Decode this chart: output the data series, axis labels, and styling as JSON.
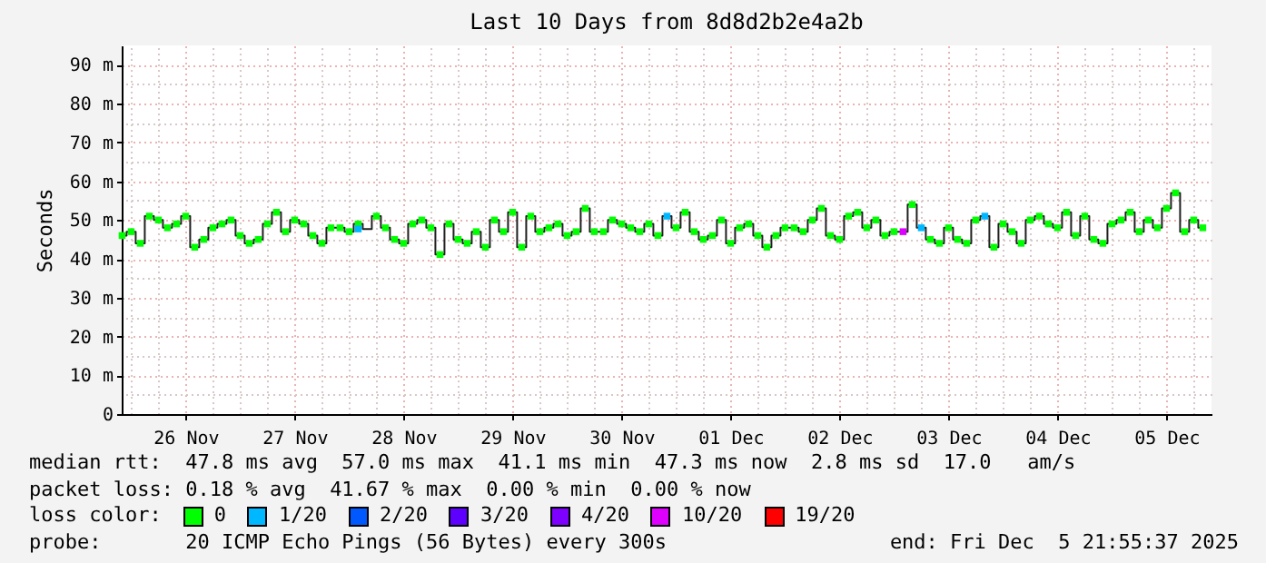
{
  "chart_data": {
    "type": "scatter",
    "title": "Last 10 Days from 8d8d2b2e4a2b",
    "ylabel": "Seconds",
    "legend_title": "loss color:",
    "legend": "bottom",
    "grid": true,
    "marker": "square",
    "annotations": [
      "median rtt:  47.8 ms avg  57.0 ms max  41.1 ms min  47.3 ms now  2.8 ms sd  17.0   am/s",
      "packet loss: 0.18 % avg  41.67 % max  0.00 % min  0.00 % now",
      "probe:       20 ICMP Echo Pings (56 Bytes) every 300s",
      "end: Fri Dec  5 21:55:37 2025"
    ],
    "xlim": [
      "2025-11-25T21:55",
      "2025-12-05T21:55"
    ],
    "xticks": [
      {
        "value": "2025-11-26T00:00",
        "label": null
      },
      {
        "value": "2025-11-26T06:00",
        "label": null
      },
      {
        "value": "2025-11-26T12:00",
        "label": "26 Nov"
      },
      {
        "value": "2025-11-26T18:00",
        "label": null
      },
      {
        "value": "2025-11-27T00:00",
        "label": null
      },
      {
        "value": "2025-11-27T06:00",
        "label": null
      },
      {
        "value": "2025-11-27T12:00",
        "label": "27 Nov"
      },
      {
        "value": "2025-11-27T18:00",
        "label": null
      },
      {
        "value": "2025-11-28T00:00",
        "label": null
      },
      {
        "value": "2025-11-28T06:00",
        "label": null
      },
      {
        "value": "2025-11-28T12:00",
        "label": "28 Nov"
      },
      {
        "value": "2025-11-28T18:00",
        "label": null
      },
      {
        "value": "2025-11-29T00:00",
        "label": null
      },
      {
        "value": "2025-11-29T06:00",
        "label": null
      },
      {
        "value": "2025-11-29T12:00",
        "label": "29 Nov"
      },
      {
        "value": "2025-11-29T18:00",
        "label": null
      },
      {
        "value": "2025-11-30T00:00",
        "label": null
      },
      {
        "value": "2025-11-30T06:00",
        "label": null
      },
      {
        "value": "2025-11-30T12:00",
        "label": "30 Nov"
      },
      {
        "value": "2025-11-30T18:00",
        "label": null
      },
      {
        "value": "2025-12-01T00:00",
        "label": null
      },
      {
        "value": "2025-12-01T06:00",
        "label": null
      },
      {
        "value": "2025-12-01T12:00",
        "label": "01 Dec"
      },
      {
        "value": "2025-12-01T18:00",
        "label": null
      },
      {
        "value": "2025-12-02T00:00",
        "label": null
      },
      {
        "value": "2025-12-02T06:00",
        "label": null
      },
      {
        "value": "2025-12-02T12:00",
        "label": "02 Dec"
      },
      {
        "value": "2025-12-02T18:00",
        "label": null
      },
      {
        "value": "2025-12-03T00:00",
        "label": null
      },
      {
        "value": "2025-12-03T06:00",
        "label": null
      },
      {
        "value": "2025-12-03T12:00",
        "label": "03 Dec"
      },
      {
        "value": "2025-12-03T18:00",
        "label": null
      },
      {
        "value": "2025-12-04T00:00",
        "label": null
      },
      {
        "value": "2025-12-04T06:00",
        "label": null
      },
      {
        "value": "2025-12-04T12:00",
        "label": "04 Dec"
      },
      {
        "value": "2025-12-04T18:00",
        "label": null
      },
      {
        "value": "2025-12-05T00:00",
        "label": null
      },
      {
        "value": "2025-12-05T06:00",
        "label": null
      },
      {
        "value": "2025-12-05T12:00",
        "label": "05 Dec"
      },
      {
        "value": "2025-12-05T18:00",
        "label": null
      }
    ],
    "ylim": [
      0,
      95
    ],
    "yticks": [
      0,
      {
        "value": 5,
        "label": null
      },
      {
        "value": 10,
        "label": "10 m"
      },
      {
        "value": 15,
        "label": null
      },
      {
        "value": 20,
        "label": "20 m"
      },
      {
        "value": 25,
        "label": null
      },
      {
        "value": 30,
        "label": "30 m"
      },
      {
        "value": 35,
        "label": null
      },
      {
        "value": 40,
        "label": "40 m"
      },
      {
        "value": 45,
        "label": null
      },
      {
        "value": 50,
        "label": "50 m"
      },
      {
        "value": 55,
        "label": null
      },
      {
        "value": 60,
        "label": "60 m"
      },
      {
        "value": 65,
        "label": null
      },
      {
        "value": 70,
        "label": "70 m"
      },
      {
        "value": 75,
        "label": null
      },
      {
        "value": 80,
        "label": "80 m"
      },
      {
        "value": 85,
        "label": null
      },
      {
        "value": 90,
        "label": "90 m"
      }
    ],
    "x": [
      "2025-11-25T22:00",
      "2025-11-26T00:00",
      "2025-11-26T02:00",
      "2025-11-26T04:00",
      "2025-11-26T06:00",
      "2025-11-26T08:00",
      "2025-11-26T10:00",
      "2025-11-26T12:00",
      "2025-11-26T14:00",
      "2025-11-26T16:00",
      "2025-11-26T18:00",
      "2025-11-26T20:00",
      "2025-11-26T22:00",
      "2025-11-27T00:00",
      "2025-11-27T02:00",
      "2025-11-27T04:00",
      "2025-11-27T06:00",
      "2025-11-27T08:00",
      "2025-11-27T10:00",
      "2025-11-27T12:00",
      "2025-11-27T14:00",
      "2025-11-27T16:00",
      "2025-11-27T18:00",
      "2025-11-27T20:00",
      "2025-11-27T22:00",
      "2025-11-28T00:00",
      "2025-11-28T02:00",
      "2025-11-28T04:00",
      "2025-11-28T06:00",
      "2025-11-28T08:00",
      "2025-11-28T10:00",
      "2025-11-28T12:00",
      "2025-11-28T14:00",
      "2025-11-28T16:00",
      "2025-11-28T18:00",
      "2025-11-28T20:00",
      "2025-11-28T22:00",
      "2025-11-29T00:00",
      "2025-11-29T02:00",
      "2025-11-29T04:00",
      "2025-11-29T06:00",
      "2025-11-29T08:00",
      "2025-11-29T10:00",
      "2025-11-29T12:00",
      "2025-11-29T14:00",
      "2025-11-29T16:00",
      "2025-11-29T18:00",
      "2025-11-29T20:00",
      "2025-11-29T22:00",
      "2025-11-30T00:00",
      "2025-11-30T02:00",
      "2025-11-30T04:00",
      "2025-11-30T06:00",
      "2025-11-30T08:00",
      "2025-11-30T10:00",
      "2025-11-30T12:00",
      "2025-11-30T14:00",
      "2025-11-30T16:00",
      "2025-11-30T18:00",
      "2025-11-30T20:00",
      "2025-11-30T22:00",
      "2025-12-01T00:00",
      "2025-12-01T02:00",
      "2025-12-01T04:00",
      "2025-12-01T06:00",
      "2025-12-01T08:00",
      "2025-12-01T10:00",
      "2025-12-01T12:00",
      "2025-12-01T14:00",
      "2025-12-01T16:00",
      "2025-12-01T18:00",
      "2025-12-01T20:00",
      "2025-12-01T22:00",
      "2025-12-02T00:00",
      "2025-12-02T02:00",
      "2025-12-02T04:00",
      "2025-12-02T06:00",
      "2025-12-02T08:00",
      "2025-12-02T10:00",
      "2025-12-02T12:00",
      "2025-12-02T14:00",
      "2025-12-02T16:00",
      "2025-12-02T18:00",
      "2025-12-02T20:00",
      "2025-12-02T22:00",
      "2025-12-03T00:00",
      "2025-12-03T02:00",
      "2025-12-03T04:00",
      "2025-12-03T06:00",
      "2025-12-03T08:00",
      "2025-12-03T10:00",
      "2025-12-03T12:00",
      "2025-12-03T14:00",
      "2025-12-03T16:00",
      "2025-12-03T18:00",
      "2025-12-03T20:00",
      "2025-12-03T22:00",
      "2025-12-04T00:00",
      "2025-12-04T02:00",
      "2025-12-04T04:00",
      "2025-12-04T06:00",
      "2025-12-04T08:00",
      "2025-12-04T10:00",
      "2025-12-04T12:00",
      "2025-12-04T14:00",
      "2025-12-04T16:00",
      "2025-12-04T18:00",
      "2025-12-04T20:00",
      "2025-12-04T22:00",
      "2025-12-05T00:00",
      "2025-12-05T02:00",
      "2025-12-05T04:00",
      "2025-12-05T06:00",
      "2025-12-05T08:00",
      "2025-12-05T10:00",
      "2025-12-05T12:00",
      "2025-12-05T14:00",
      "2025-12-05T16:00",
      "2025-12-05T18:00",
      "2025-12-05T20:00"
    ],
    "series": [
      {
        "type": "step",
        "marker": "none",
        "color": "#202020",
        "values": [
          46,
          47,
          44,
          51,
          50,
          48,
          49,
          51,
          43,
          45,
          48,
          49,
          50,
          46,
          44,
          45,
          49,
          52,
          47,
          50,
          49,
          46,
          44,
          48,
          48,
          47,
          49,
          47.7,
          51,
          48,
          45,
          44,
          49,
          50,
          48,
          41.1,
          49,
          45,
          44,
          47,
          43,
          50,
          47,
          52,
          43,
          51,
          47,
          48,
          49,
          46,
          47,
          53,
          47,
          47,
          50,
          49,
          48,
          47,
          49,
          46,
          51,
          48,
          52,
          47,
          45,
          46,
          50,
          44,
          48,
          49,
          46,
          43,
          46,
          48,
          48,
          47,
          50,
          53,
          46,
          45,
          51,
          52,
          48,
          50,
          46,
          47,
          47,
          54,
          48,
          45,
          44,
          48,
          45,
          44,
          50,
          51,
          43,
          49,
          47,
          44,
          50,
          51,
          49,
          48,
          52,
          46,
          51,
          45,
          44,
          49,
          50,
          52,
          47,
          50,
          48,
          53,
          57,
          47,
          50,
          48
        ]
      },
      {
        "name": "0",
        "color": "#00ff00",
        "values": [
          46,
          47,
          44,
          51,
          50,
          48,
          49,
          51,
          43,
          45,
          48,
          49,
          50,
          46,
          44,
          45,
          49,
          52,
          47,
          50,
          49,
          46,
          44,
          48,
          48,
          47,
          49,
          null,
          51,
          48,
          45,
          44,
          49,
          50,
          48,
          41.1,
          49,
          45,
          44,
          47,
          43,
          50,
          47,
          52,
          43,
          51,
          47,
          48,
          49,
          46,
          47,
          53,
          47,
          47,
          50,
          49,
          48,
          47,
          49,
          46,
          null,
          48,
          52,
          47,
          45,
          46,
          50,
          44,
          48,
          49,
          46,
          43,
          46,
          48,
          48,
          47,
          50,
          53,
          46,
          45,
          51,
          52,
          48,
          50,
          46,
          47,
          null,
          54,
          null,
          45,
          44,
          48,
          45,
          44,
          50,
          null,
          43,
          49,
          47,
          44,
          50,
          51,
          49,
          48,
          52,
          46,
          51,
          45,
          44,
          49,
          50,
          52,
          47,
          50,
          48,
          53,
          57,
          47,
          50,
          48
        ]
      },
      {
        "name": "1/20",
        "color": "#00b8ff",
        "x": [
          "2025-11-28T02:00",
          "2025-11-30T22:00",
          "2025-12-03T06:00",
          "2025-12-03T20:00"
        ],
        "values": [
          47.7,
          51,
          48,
          51
        ]
      },
      {
        "name": "2/20",
        "color": "#0059ff",
        "values": [
          null,
          null,
          null,
          null,
          null,
          null,
          null,
          null,
          null,
          null,
          null,
          null,
          null,
          null,
          null,
          null,
          null,
          null,
          null,
          null,
          null,
          null,
          null,
          null,
          null,
          null,
          null,
          null,
          null,
          null,
          null,
          null,
          null,
          null,
          null,
          null,
          null,
          null,
          null,
          null,
          null,
          null,
          null,
          null,
          null,
          null,
          null,
          null,
          null,
          null,
          null,
          null,
          null,
          null,
          null,
          null,
          null,
          null,
          null,
          null,
          null,
          null,
          null,
          null,
          null,
          null,
          null,
          null,
          null,
          null,
          null,
          null,
          null,
          null,
          null,
          null,
          null,
          null,
          null,
          null,
          null,
          null,
          null,
          null,
          null,
          null,
          null,
          null,
          null,
          null,
          null,
          null,
          null,
          null,
          null,
          null,
          null,
          null,
          null,
          null,
          null,
          null,
          null,
          null,
          null,
          null,
          null,
          null,
          null,
          null,
          null,
          null,
          null,
          null,
          null,
          null,
          null,
          null,
          null,
          null
        ]
      },
      {
        "name": "3/20",
        "color": "#5e00ff",
        "values": [
          null,
          null,
          null,
          null,
          null,
          null,
          null,
          null,
          null,
          null,
          null,
          null,
          null,
          null,
          null,
          null,
          null,
          null,
          null,
          null,
          null,
          null,
          null,
          null,
          null,
          null,
          null,
          null,
          null,
          null,
          null,
          null,
          null,
          null,
          null,
          null,
          null,
          null,
          null,
          null,
          null,
          null,
          null,
          null,
          null,
          null,
          null,
          null,
          null,
          null,
          null,
          null,
          null,
          null,
          null,
          null,
          null,
          null,
          null,
          null,
          null,
          null,
          null,
          null,
          null,
          null,
          null,
          null,
          null,
          null,
          null,
          null,
          null,
          null,
          null,
          null,
          null,
          null,
          null,
          null,
          null,
          null,
          null,
          null,
          null,
          null,
          null,
          null,
          null,
          null,
          null,
          null,
          null,
          null,
          null,
          null,
          null,
          null,
          null,
          null,
          null,
          null,
          null,
          null,
          null,
          null,
          null,
          null,
          null,
          null,
          null,
          null,
          null,
          null,
          null,
          null,
          null,
          null,
          null,
          null
        ]
      },
      {
        "name": "4/20",
        "color": "#7e00ff",
        "values": [
          null,
          null,
          null,
          null,
          null,
          null,
          null,
          null,
          null,
          null,
          null,
          null,
          null,
          null,
          null,
          null,
          null,
          null,
          null,
          null,
          null,
          null,
          null,
          null,
          null,
          null,
          null,
          null,
          null,
          null,
          null,
          null,
          null,
          null,
          null,
          null,
          null,
          null,
          null,
          null,
          null,
          null,
          null,
          null,
          null,
          null,
          null,
          null,
          null,
          null,
          null,
          null,
          null,
          null,
          null,
          null,
          null,
          null,
          null,
          null,
          null,
          null,
          null,
          null,
          null,
          null,
          null,
          null,
          null,
          null,
          null,
          null,
          null,
          null,
          null,
          null,
          null,
          null,
          null,
          null,
          null,
          null,
          null,
          null,
          null,
          null,
          null,
          null,
          null,
          null,
          null,
          null,
          null,
          null,
          null,
          null,
          null,
          null,
          null,
          null,
          null,
          null,
          null,
          null,
          null,
          null,
          null,
          null,
          null,
          null,
          null,
          null,
          null,
          null,
          null,
          null,
          null,
          null,
          null,
          null
        ]
      },
      {
        "name": "10/20",
        "color": "#dd00ff",
        "x": [
          "2025-12-03T02:00"
        ],
        "values": [
          47
        ]
      },
      {
        "name": "19/20",
        "color": "#ff0000",
        "values": [
          null,
          null,
          null,
          null,
          null,
          null,
          null,
          null,
          null,
          null,
          null,
          null,
          null,
          null,
          null,
          null,
          null,
          null,
          null,
          null,
          null,
          null,
          null,
          null,
          null,
          null,
          null,
          null,
          null,
          null,
          null,
          null,
          null,
          null,
          null,
          null,
          null,
          null,
          null,
          null,
          null,
          null,
          null,
          null,
          null,
          null,
          null,
          null,
          null,
          null,
          null,
          null,
          null,
          null,
          null,
          null,
          null,
          null,
          null,
          null,
          null,
          null,
          null,
          null,
          null,
          null,
          null,
          null,
          null,
          null,
          null,
          null,
          null,
          null,
          null,
          null,
          null,
          null,
          null,
          null,
          null,
          null,
          null,
          null,
          null,
          null,
          null,
          null,
          null,
          null,
          null,
          null,
          null,
          null,
          null,
          null,
          null,
          null,
          null,
          null,
          null,
          null,
          null,
          null,
          null,
          null,
          null,
          null,
          null,
          null,
          null,
          null,
          null,
          null,
          null,
          null,
          null,
          null,
          null,
          null
        ]
      }
    ]
  }
}
